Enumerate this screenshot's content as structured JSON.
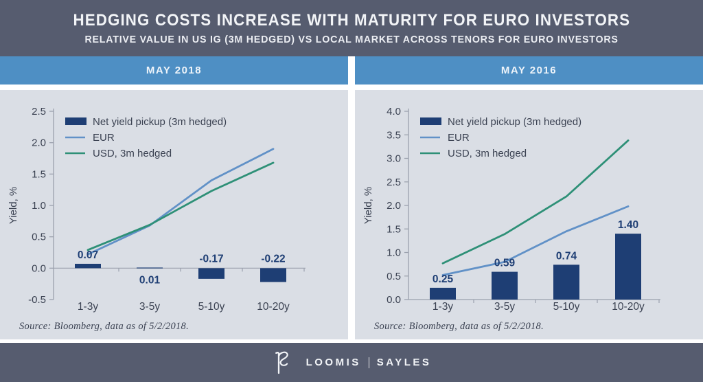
{
  "header": {
    "title": "HEDGING COSTS INCREASE WITH MATURITY FOR EURO INVESTORS",
    "subtitle": "RELATIVE VALUE IN US IG (3M HEDGED) VS LOCAL MARKET ACROSS TENORS FOR EURO INVESTORS"
  },
  "panels": [
    {
      "band_label": "MAY 2018",
      "source": "Source: Bloomberg, data as of 5/2/2018."
    },
    {
      "band_label": "MAY 2016",
      "source": "Source: Bloomberg, data as of 5/2/2018."
    }
  ],
  "footer": {
    "logo": "loomis-sayles-ls-monogram",
    "brand_left": "LOOMIS",
    "brand_right": "SAYLES"
  },
  "colors": {
    "header_slate": "#565c6f",
    "band_blue": "#4e8fc4",
    "panel_bg": "#dadee5",
    "bar_navy": "#1e3e74",
    "eur_blue": "#6191c7",
    "usd_teal": "#2e9077",
    "axis_gray": "#9ba1ad",
    "tick_text": "#3b4252",
    "label_navy": "#1e3e74"
  },
  "chart_data": [
    {
      "type": "bar+line",
      "title": "MAY 2018",
      "categories": [
        "1-3y",
        "3-5y",
        "5-10y",
        "10-20y"
      ],
      "bar_series": {
        "name": "Net yield pickup (3m hedged)",
        "values": [
          0.07,
          0.01,
          -0.17,
          -0.22
        ],
        "labels": [
          "0.07",
          "0.01",
          "-0.17",
          "-0.22"
        ],
        "color": "#1e3e74"
      },
      "line_series": [
        {
          "name": "EUR",
          "values": [
            0.22,
            0.68,
            1.4,
            1.9
          ],
          "color": "#6191c7"
        },
        {
          "name": "USD, 3m hedged",
          "values": [
            0.29,
            0.69,
            1.23,
            1.68
          ],
          "color": "#2e9077"
        }
      ],
      "ylabel": "Yield, %",
      "ylim": [
        -0.5,
        2.5
      ],
      "ytick_step": 0.5,
      "grid": false,
      "legend_position": "top-left"
    },
    {
      "type": "bar+line",
      "title": "MAY 2016",
      "categories": [
        "1-3y",
        "3-5y",
        "5-10y",
        "10-20y"
      ],
      "bar_series": {
        "name": "Net yield pickup (3m hedged)",
        "values": [
          0.25,
          0.59,
          0.74,
          1.4
        ],
        "labels": [
          "0.25",
          "0.59",
          "0.74",
          "1.40"
        ],
        "color": "#1e3e74"
      },
      "line_series": [
        {
          "name": "EUR",
          "values": [
            0.52,
            0.8,
            1.45,
            1.98
          ],
          "color": "#6191c7"
        },
        {
          "name": "USD, 3m hedged",
          "values": [
            0.77,
            1.39,
            2.19,
            3.38
          ],
          "color": "#2e9077"
        }
      ],
      "ylabel": "Yield, %",
      "ylim": [
        0.0,
        4.0
      ],
      "ytick_step": 0.5,
      "grid": false,
      "legend_position": "top-left"
    }
  ]
}
